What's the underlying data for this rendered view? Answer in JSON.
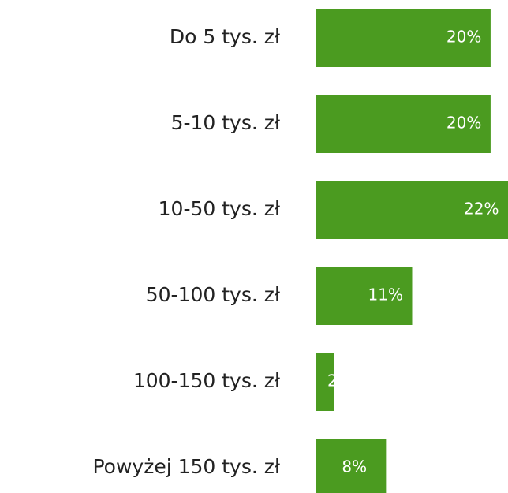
{
  "chart_data": {
    "type": "hbar",
    "categories": [
      "Do 5 tys. zł",
      "5-10 tys. zł",
      "10-50 tys. zł",
      "50-100 tys. zł",
      "100-150 tys. zł",
      "Powyżej 150 tys. zł"
    ],
    "values": [
      20,
      20,
      22,
      11,
      2,
      8
    ],
    "value_labels": [
      "20%",
      "20%",
      "22%",
      "11%",
      "2%",
      "8%"
    ],
    "color": "#4b9b20",
    "xlim": [
      0,
      22
    ]
  }
}
